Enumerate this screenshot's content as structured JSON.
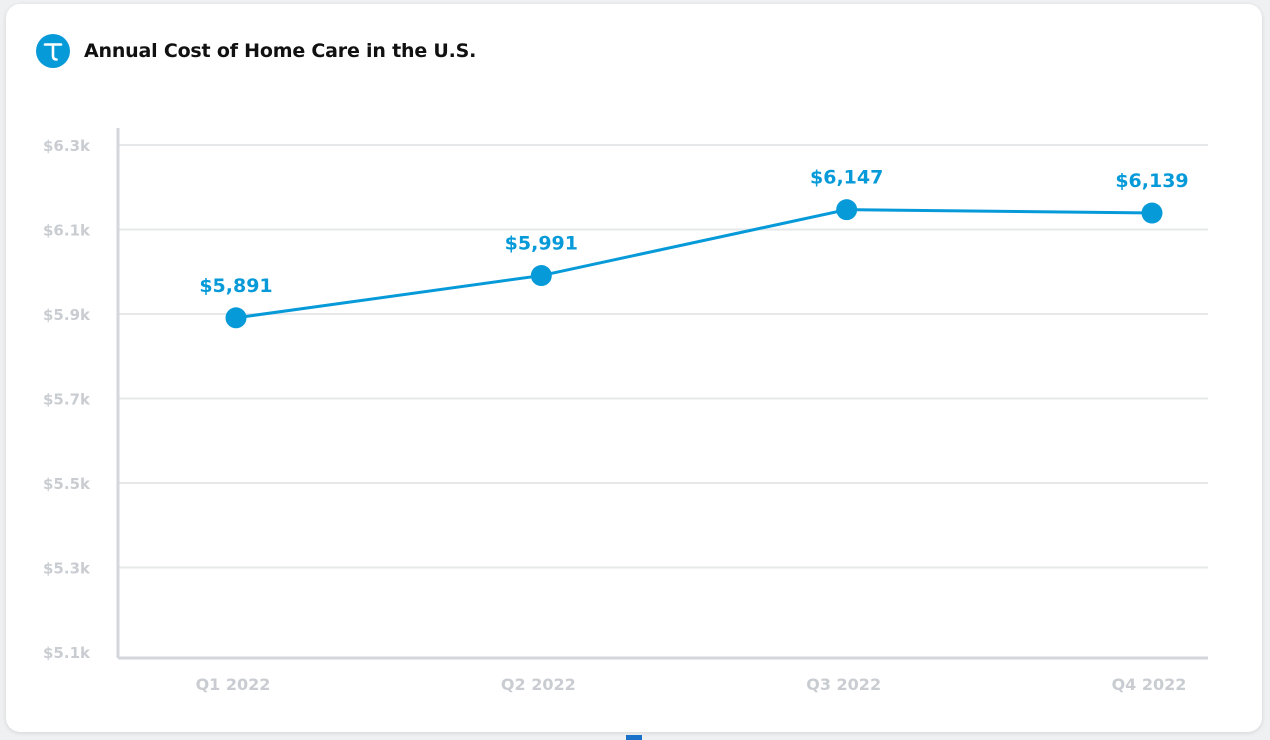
{
  "header": {
    "title": "Annual Cost of Home Care in the U.S.",
    "logo_icon": "t-logo-icon"
  },
  "colors": {
    "accent": "#079ad9",
    "grid": "#e6e8ea",
    "axis": "#d3d6da",
    "tick_text": "#c9cdd2"
  },
  "chart_data": {
    "type": "line",
    "title": "Annual Cost of Home Care in the U.S.",
    "categories": [
      "Q1 2022",
      "Q2 2022",
      "Q3 2022",
      "Q4 2022"
    ],
    "values": [
      5891,
      5991,
      6147,
      6139
    ],
    "data_labels": [
      "$5,891",
      "$5,991",
      "$6,147",
      "$6,139"
    ],
    "yticks": [
      5100,
      5300,
      5500,
      5700,
      5900,
      6100,
      6300
    ],
    "ytick_labels": [
      "$5.1k",
      "$5.3k",
      "$5.5k",
      "$5.7k",
      "$5.9k",
      "$6.1k",
      "$6.3k"
    ],
    "ylim": [
      5100,
      6300
    ],
    "xlabel": "",
    "ylabel": "",
    "grid": true,
    "legend": "none"
  }
}
